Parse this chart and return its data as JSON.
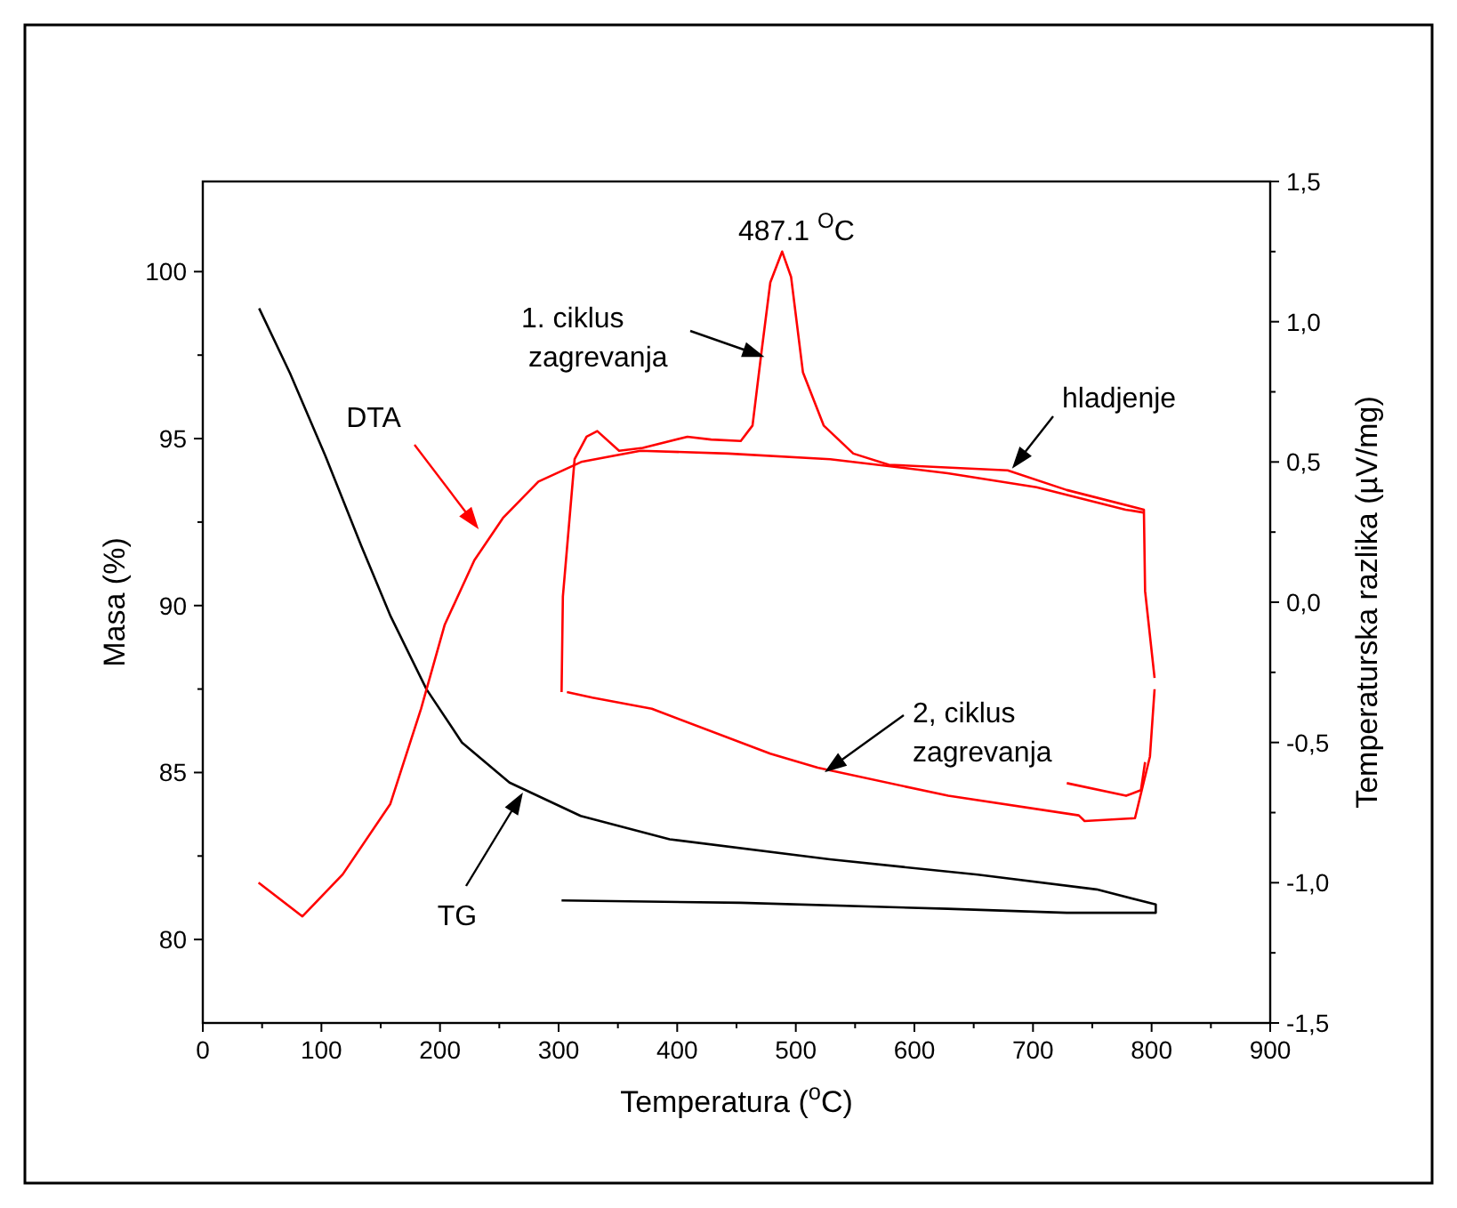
{
  "chart_data": {
    "type": "line",
    "xlabel": "Temperatura ($^{o}$C)",
    "ylabel": "Masa (%)",
    "y2label": "Temperaturska razlika (µV/mg)",
    "xlim": [
      0,
      900
    ],
    "ylim": [
      77.5,
      102.7
    ],
    "y2lim": [
      -1.5,
      1.5
    ],
    "xticks": [
      0,
      {
        "value": 50,
        "label": null
      },
      100,
      {
        "value": 150,
        "label": null
      },
      200,
      {
        "value": 250,
        "label": null
      },
      300,
      {
        "value": 350,
        "label": null
      },
      400,
      {
        "value": 450,
        "label": null
      },
      500,
      {
        "value": 550,
        "label": null
      },
      600,
      {
        "value": 650,
        "label": null
      },
      700,
      {
        "value": 750,
        "label": null
      },
      800,
      {
        "value": 850,
        "label": null
      },
      900
    ],
    "yticks": [
      80,
      {
        "value": 82.5,
        "label": null
      },
      85,
      {
        "value": 87.5,
        "label": null
      },
      90,
      {
        "value": 92.5,
        "label": null
      },
      95,
      {
        "value": 97.5,
        "label": null
      },
      100
    ],
    "y2ticks": [
      {
        "value": -1.5,
        "label": "-1,5"
      },
      {
        "value": -1.25,
        "label": null
      },
      {
        "value": -1.0,
        "label": "-1,0"
      },
      {
        "value": -0.75,
        "label": null
      },
      {
        "value": -0.5,
        "label": "-0,5"
      },
      {
        "value": -0.25,
        "label": null
      },
      {
        "value": 0,
        "label": "0,0"
      },
      {
        "value": 0.25,
        "label": null
      },
      {
        "value": 0.5,
        "label": "0,5"
      },
      {
        "value": 0.75,
        "label": null
      },
      {
        "value": 1.0,
        "label": "1,0"
      },
      {
        "value": 1.25,
        "label": null
      },
      {
        "value": 1.5,
        "label": "1,5"
      }
    ],
    "grid": false,
    "marker": "none",
    "line_style": "solid",
    "annotations": [
      "487.1 $^{O}$C",
      "1. ciklus\nzagrevanja",
      "hladjenje",
      "2, ciklus\nzagrevanja"
    ],
    "series": [
      {
        "name": "TG",
        "color": "#000000",
        "x": [
          47.5,
          73.5,
          103.5,
          133.5,
          158.5,
          188.5,
          218.5,
          258.6,
          318.6,
          393.6,
          528.6,
          653.5,
          753.6,
          803.5,
          803.5,
          728.5,
          628,
          453.6,
          302.5
        ],
        "values": [
          98.9,
          96.96,
          94.47,
          91.8,
          89.67,
          87.5,
          85.9,
          84.7,
          83.7,
          83.0,
          82.4,
          81.94,
          81.5,
          81.05,
          80.8,
          80.8,
          80.92,
          81.1,
          81.17
        ]
      },
      {
        "name": "DTA",
        "color": "#ff0000",
        "axis": "y2",
        "x": [
          47,
          84,
          118,
          158,
          184,
          204,
          229,
          253,
          283,
          319,
          369,
          443,
          529,
          628,
          703,
          778,
          793
        ],
        "values": [
          -1.0,
          -1.12,
          -0.97,
          -0.72,
          -0.38,
          -0.08,
          0.15,
          0.3,
          0.43,
          0.5,
          0.54,
          0.53,
          0.51,
          0.46,
          0.41,
          0.33,
          0.32
        ]
      },
      {
        "color": "#ff0000",
        "axis": "y2",
        "x": [
          302.5,
          303.6,
          313.5,
          323.6,
          332.6,
          351,
          371,
          408.6,
          428.6,
          453.6,
          463.5,
          471,
          478.5,
          488.5,
          496,
          506,
          523.5,
          548.5,
          578.5,
          678.6,
          728.5,
          793.5,
          794.5,
          802.5
        ],
        "values": [
          -0.32,
          0.02,
          0.51,
          0.59,
          0.61,
          0.54,
          0.55,
          0.59,
          0.58,
          0.575,
          0.63,
          0.89,
          1.14,
          1.25,
          1.16,
          0.82,
          0.63,
          0.53,
          0.49,
          0.47,
          0.4,
          0.33,
          0.04,
          -0.27
        ]
      },
      {
        "color": "#ff0000",
        "axis": "y2",
        "x": [
          307,
          328.5,
          378.6,
          478.5,
          518.5,
          628.5,
          738.6,
          743.5,
          786,
          798.6,
          802.5
        ],
        "values": [
          -0.32,
          -0.34,
          -0.38,
          -0.54,
          -0.59,
          -0.69,
          -0.76,
          -0.78,
          -0.77,
          -0.55,
          -0.31
        ]
      },
      {
        "color": "#ff0000",
        "axis": "y2",
        "x": [
          728.5,
          778.5,
          791,
          794.5
        ],
        "values": [
          -0.645,
          -0.69,
          -0.67,
          -0.57
        ]
      }
    ]
  }
}
